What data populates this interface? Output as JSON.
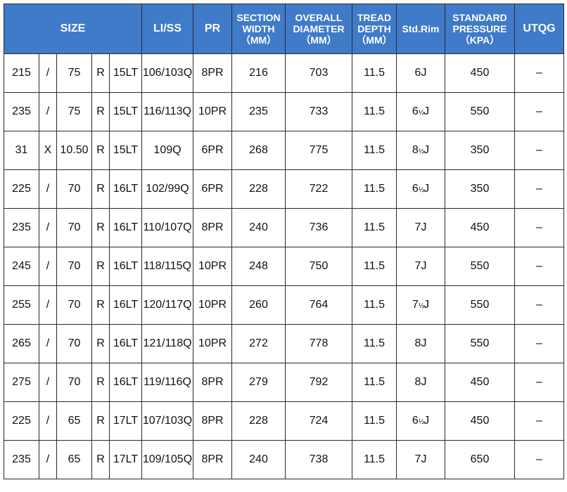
{
  "header": {
    "size": "SIZE",
    "li_ss": "LI/SS",
    "pr": "PR",
    "section_width": [
      "SECTION",
      "WIDTH",
      "（MM）"
    ],
    "overall_diameter": [
      "OVERALL",
      "DIAMETER",
      "（MM）"
    ],
    "tread_depth": [
      "TREAD",
      "DEPTH",
      "（MM）"
    ],
    "std_rim": "Std.Rim",
    "standard_pressure": [
      "STANDARD",
      "PRESSURE",
      "（KPA）"
    ],
    "utqg": "UTQG"
  },
  "colors": {
    "header_bg": "#3f7bc9",
    "header_text": "#ffffff",
    "border": "#2a2a2a"
  },
  "rows": [
    {
      "width": "215",
      "sep": "/",
      "ratio": "75",
      "r": "R",
      "rim": "15LT",
      "li": "106/103Q",
      "pr": "8PR",
      "section": "216",
      "diameter": "703",
      "tread": "11.5",
      "stdrim": "6J",
      "stdrim_frac": "",
      "pressure": "450",
      "utqg": "–"
    },
    {
      "width": "235",
      "sep": "/",
      "ratio": "75",
      "r": "R",
      "rim": "15LT",
      "li": "116/113Q",
      "pr": "10PR",
      "section": "235",
      "diameter": "733",
      "tread": "11.5",
      "stdrim": "6",
      "stdrim_frac": "½",
      "stdrim_suffix": "J",
      "pressure": "550",
      "utqg": "–"
    },
    {
      "width": "31",
      "sep": "X",
      "ratio": "10.50",
      "r": "R",
      "rim": "15LT",
      "li": "109Q",
      "pr": "6PR",
      "section": "268",
      "diameter": "775",
      "tread": "11.5",
      "stdrim": "8",
      "stdrim_frac": "½",
      "stdrim_suffix": "J",
      "pressure": "350",
      "utqg": "–"
    },
    {
      "width": "225",
      "sep": "/",
      "ratio": "70",
      "r": "R",
      "rim": "16LT",
      "li": "102/99Q",
      "pr": "6PR",
      "section": "228",
      "diameter": "722",
      "tread": "11.5",
      "stdrim": "6",
      "stdrim_frac": "½",
      "stdrim_suffix": "J",
      "pressure": "350",
      "utqg": "–"
    },
    {
      "width": "235",
      "sep": "/",
      "ratio": "70",
      "r": "R",
      "rim": "16LT",
      "li": "110/107Q",
      "pr": "8PR",
      "section": "240",
      "diameter": "736",
      "tread": "11.5",
      "stdrim": "7J",
      "stdrim_frac": "",
      "pressure": "450",
      "utqg": "–"
    },
    {
      "width": "245",
      "sep": "/",
      "ratio": "70",
      "r": "R",
      "rim": "16LT",
      "li": "118/115Q",
      "pr": "10PR",
      "section": "248",
      "diameter": "750",
      "tread": "11.5",
      "stdrim": "7J",
      "stdrim_frac": "",
      "pressure": "550",
      "utqg": "–"
    },
    {
      "width": "255",
      "sep": "/",
      "ratio": "70",
      "r": "R",
      "rim": "16LT",
      "li": "120/117Q",
      "pr": "10PR",
      "section": "260",
      "diameter": "764",
      "tread": "11.5",
      "stdrim": "7",
      "stdrim_frac": "½",
      "stdrim_suffix": "J",
      "pressure": "550",
      "utqg": "–"
    },
    {
      "width": "265",
      "sep": "/",
      "ratio": "70",
      "r": "R",
      "rim": "16LT",
      "li": "121/118Q",
      "pr": "10PR",
      "section": "272",
      "diameter": "778",
      "tread": "11.5",
      "stdrim": "8J",
      "stdrim_frac": "",
      "pressure": "550",
      "utqg": "–"
    },
    {
      "width": "275",
      "sep": "/",
      "ratio": "70",
      "r": "R",
      "rim": "16LT",
      "li": "119/116Q",
      "pr": "8PR",
      "section": "279",
      "diameter": "792",
      "tread": "11.5",
      "stdrim": "8J",
      "stdrim_frac": "",
      "pressure": "450",
      "utqg": "–"
    },
    {
      "width": "225",
      "sep": "/",
      "ratio": "65",
      "r": "R",
      "rim": "17LT",
      "li": "107/103Q",
      "pr": "8PR",
      "section": "228",
      "diameter": "724",
      "tread": "11.5",
      "stdrim": "6",
      "stdrim_frac": "½",
      "stdrim_suffix": "J",
      "pressure": "450",
      "utqg": "–"
    },
    {
      "width": "235",
      "sep": "/",
      "ratio": "65",
      "r": "R",
      "rim": "17LT",
      "li": "109/105Q",
      "pr": "8PR",
      "section": "240",
      "diameter": "738",
      "tread": "11.5",
      "stdrim": "7J",
      "stdrim_frac": "",
      "pressure": "650",
      "utqg": "–"
    }
  ]
}
